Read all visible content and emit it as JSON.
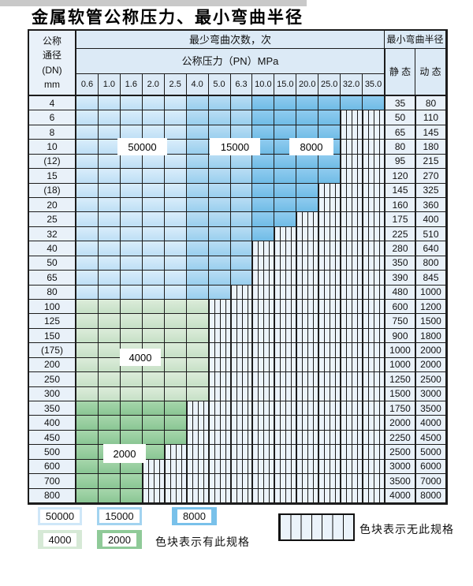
{
  "page": {
    "title": "金属软管公称压力、最小弯曲半径"
  },
  "table": {
    "header": {
      "dn_lines": [
        "公称",
        "通径",
        "(DN)",
        "mm"
      ],
      "cycles": "最少弯曲次数，次",
      "radius": "最小弯曲半径",
      "pn": "公称压力（PN）MPa",
      "static": "静 态",
      "dynamic": "动 态"
    },
    "pressures": [
      "0.6",
      "1.0",
      "1.6",
      "2.0",
      "2.5",
      "4.0",
      "5.0",
      "6.3",
      "10.0",
      "15.0",
      "20.0",
      "25.0",
      "32.0",
      "35.0"
    ],
    "rows": [
      {
        "dn": "4",
        "static": "35",
        "dynamic": "80",
        "cycle_zones": [
          {
            "cycles": "50000",
            "cols": 5
          },
          {
            "cycles": "15000",
            "cols": 3
          },
          {
            "cycles": "8000",
            "cols": 6
          }
        ]
      },
      {
        "dn": "6",
        "static": "50",
        "dynamic": "110",
        "cycle_zones": [
          {
            "cycles": "50000",
            "cols": 5
          },
          {
            "cycles": "15000",
            "cols": 3
          },
          {
            "cycles": "8000",
            "cols": 4
          }
        ]
      },
      {
        "dn": "8",
        "static": "65",
        "dynamic": "145",
        "cycle_zones": [
          {
            "cycles": "50000",
            "cols": 5
          },
          {
            "cycles": "15000",
            "cols": 3
          },
          {
            "cycles": "8000",
            "cols": 4
          }
        ]
      },
      {
        "dn": "10",
        "static": "80",
        "dynamic": "180",
        "cycle_zones": [
          {
            "cycles": "50000",
            "cols": 5
          },
          {
            "cycles": "15000",
            "cols": 3
          },
          {
            "cycles": "8000",
            "cols": 4
          }
        ]
      },
      {
        "dn": "(12)",
        "static": "95",
        "dynamic": "215",
        "cycle_zones": [
          {
            "cycles": "50000",
            "cols": 5
          },
          {
            "cycles": "15000",
            "cols": 3
          },
          {
            "cycles": "8000",
            "cols": 4
          }
        ]
      },
      {
        "dn": "15",
        "static": "120",
        "dynamic": "270",
        "cycle_zones": [
          {
            "cycles": "50000",
            "cols": 5
          },
          {
            "cycles": "15000",
            "cols": 3
          },
          {
            "cycles": "8000",
            "cols": 4
          }
        ]
      },
      {
        "dn": "(18)",
        "static": "145",
        "dynamic": "325",
        "cycle_zones": [
          {
            "cycles": "50000",
            "cols": 5
          },
          {
            "cycles": "15000",
            "cols": 3
          },
          {
            "cycles": "8000",
            "cols": 3
          }
        ]
      },
      {
        "dn": "20",
        "static": "160",
        "dynamic": "360",
        "cycle_zones": [
          {
            "cycles": "50000",
            "cols": 5
          },
          {
            "cycles": "15000",
            "cols": 3
          },
          {
            "cycles": "8000",
            "cols": 3
          }
        ]
      },
      {
        "dn": "25",
        "static": "175",
        "dynamic": "400",
        "cycle_zones": [
          {
            "cycles": "50000",
            "cols": 5
          },
          {
            "cycles": "15000",
            "cols": 3
          },
          {
            "cycles": "8000",
            "cols": 2
          }
        ]
      },
      {
        "dn": "32",
        "static": "225",
        "dynamic": "510",
        "cycle_zones": [
          {
            "cycles": "50000",
            "cols": 5
          },
          {
            "cycles": "15000",
            "cols": 3
          },
          {
            "cycles": "8000",
            "cols": 1
          }
        ]
      },
      {
        "dn": "40",
        "static": "280",
        "dynamic": "640",
        "cycle_zones": [
          {
            "cycles": "50000",
            "cols": 5
          },
          {
            "cycles": "15000",
            "cols": 3
          }
        ]
      },
      {
        "dn": "50",
        "static": "350",
        "dynamic": "800",
        "cycle_zones": [
          {
            "cycles": "50000",
            "cols": 5
          },
          {
            "cycles": "15000",
            "cols": 3
          }
        ]
      },
      {
        "dn": "65",
        "static": "390",
        "dynamic": "845",
        "cycle_zones": [
          {
            "cycles": "50000",
            "cols": 5
          },
          {
            "cycles": "15000",
            "cols": 3
          }
        ]
      },
      {
        "dn": "80",
        "static": "480",
        "dynamic": "1000",
        "cycle_zones": [
          {
            "cycles": "50000",
            "cols": 5
          },
          {
            "cycles": "15000",
            "cols": 2
          }
        ]
      },
      {
        "dn": "100",
        "static": "600",
        "dynamic": "1200",
        "cycle_zones": [
          {
            "cycles": "4000",
            "cols": 6
          }
        ]
      },
      {
        "dn": "125",
        "static": "750",
        "dynamic": "1500",
        "cycle_zones": [
          {
            "cycles": "4000",
            "cols": 6
          }
        ]
      },
      {
        "dn": "150",
        "static": "900",
        "dynamic": "1800",
        "cycle_zones": [
          {
            "cycles": "4000",
            "cols": 6
          }
        ]
      },
      {
        "dn": "(175)",
        "static": "1000",
        "dynamic": "2000",
        "cycle_zones": [
          {
            "cycles": "4000",
            "cols": 6
          }
        ]
      },
      {
        "dn": "200",
        "static": "1000",
        "dynamic": "2000",
        "cycle_zones": [
          {
            "cycles": "4000",
            "cols": 6
          }
        ]
      },
      {
        "dn": "250",
        "static": "1250",
        "dynamic": "2500",
        "cycle_zones": [
          {
            "cycles": "4000",
            "cols": 6
          }
        ]
      },
      {
        "dn": "300",
        "static": "1500",
        "dynamic": "3000",
        "cycle_zones": [
          {
            "cycles": "4000",
            "cols": 6
          }
        ]
      },
      {
        "dn": "350",
        "static": "1750",
        "dynamic": "3500",
        "cycle_zones": [
          {
            "cycles": "2000",
            "cols": 5
          }
        ]
      },
      {
        "dn": "400",
        "static": "2000",
        "dynamic": "4000",
        "cycle_zones": [
          {
            "cycles": "2000",
            "cols": 5
          }
        ]
      },
      {
        "dn": "450",
        "static": "2250",
        "dynamic": "4500",
        "cycle_zones": [
          {
            "cycles": "2000",
            "cols": 5
          }
        ]
      },
      {
        "dn": "500",
        "static": "2500",
        "dynamic": "5000",
        "cycle_zones": [
          {
            "cycles": "2000",
            "cols": 4
          }
        ]
      },
      {
        "dn": "600",
        "static": "3000",
        "dynamic": "6000",
        "cycle_zones": [
          {
            "cycles": "2000",
            "cols": 3
          }
        ]
      },
      {
        "dn": "700",
        "static": "3500",
        "dynamic": "7000",
        "cycle_zones": [
          {
            "cycles": "2000",
            "cols": 3
          }
        ]
      },
      {
        "dn": "800",
        "static": "4000",
        "dynamic": "8000",
        "cycle_zones": [
          {
            "cycles": "2000",
            "cols": 3
          }
        ]
      }
    ],
    "zone_labels": {
      "b50000": "50000",
      "b15000": "15000",
      "b8000": "8000",
      "g4000": "4000",
      "g2000": "2000"
    }
  },
  "legend": {
    "items": [
      {
        "label": "50000",
        "color": "#cfe7f8"
      },
      {
        "label": "15000",
        "color": "#a2d3f0"
      },
      {
        "label": "8000",
        "color": "#79c1ea"
      },
      {
        "label": "4000",
        "color": "#d6e9d6"
      },
      {
        "label": "2000",
        "color": "#8fca98"
      }
    ],
    "has_spec_note": "色块表示有此规格",
    "no_spec_note": "色块表示无此规格"
  },
  "colors": {
    "c50000_top": "#d9edfb",
    "c50000_bot": "#bedff5",
    "c15000_top": "#b9ddf4",
    "c15000_bot": "#99cfee",
    "c8000_top": "#8fcbef",
    "c8000_bot": "#70bce6",
    "c4000_top": "#dcecda",
    "c4000_bot": "#c6e0c6",
    "c2000_top": "#a6d6ab",
    "c2000_bot": "#8ac694",
    "no_spec_bg": "#ebf3fa",
    "grid_line": "#1c1c1c",
    "header_bg": "#dceaf6",
    "label_col_bg": "#e9f1f9",
    "legend_50000": "#cfe7f8",
    "legend_15000": "#a2d3f0",
    "legend_8000": "#79c1ea",
    "legend_4000": "#d6e9d6",
    "legend_2000": "#8fca98",
    "scan_strip": "#c9c9c9"
  }
}
